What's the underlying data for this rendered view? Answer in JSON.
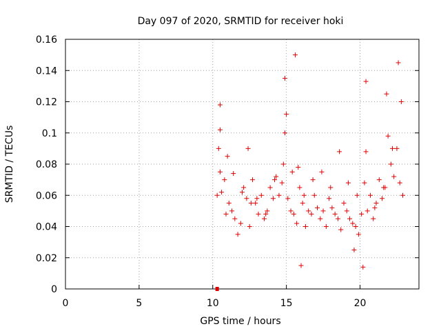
{
  "chart_data": {
    "type": "scatter",
    "title": "Day 097 of 2020, SRMTID for receiver hoki",
    "xlabel": "GPS time / hours",
    "ylabel": "SRMTID / TECUs",
    "xlim": [
      0,
      24
    ],
    "ylim": [
      0,
      0.16
    ],
    "x_ticks": [
      "0",
      "5",
      "10",
      "15",
      "20"
    ],
    "y_ticks": [
      "0",
      "0.02",
      "0.04",
      "0.06",
      "0.08",
      "0.1",
      "0.12",
      "0.14",
      "0.16"
    ],
    "grid": true,
    "legend": "none",
    "marker": "plus",
    "color": "#e00000",
    "series": [
      {
        "values_x": [
          10.3,
          10.4,
          10.5,
          10.6,
          10.8,
          10.9,
          11.1,
          11.3,
          11.5,
          11.7,
          11.9,
          12.1,
          12.3,
          12.5,
          12.7,
          12.9,
          13.1,
          13.3,
          13.5,
          13.7,
          13.9,
          14.1,
          14.3,
          14.5,
          14.7,
          14.9,
          15.1,
          15.3,
          15.5,
          15.7,
          15.9,
          16.1,
          16.3,
          16.5,
          16.7,
          16.9,
          17.1,
          17.3,
          17.5,
          17.7,
          17.9,
          18.1,
          18.3,
          18.5,
          18.7,
          18.9,
          19.1,
          19.3,
          19.5,
          19.7,
          19.9,
          20.1,
          20.3,
          20.5,
          20.7,
          20.9,
          21.1,
          21.3,
          21.5,
          21.7,
          21.9,
          22.1,
          22.3,
          22.5,
          22.7,
          22.9,
          10.5,
          11.0,
          11.4,
          12.0,
          12.6,
          13.0,
          13.6,
          14.2,
          14.8,
          15.0,
          15.4,
          15.8,
          16.2,
          16.8,
          17.4,
          18.0,
          18.6,
          19.2,
          19.8,
          20.4,
          21.0,
          21.6,
          22.2,
          22.8,
          14.9,
          15.6,
          22.6,
          20.4,
          21.8,
          10.5,
          12.4,
          16.0,
          19.6,
          20.2
        ],
        "values_y": [
          0.06,
          0.09,
          0.075,
          0.062,
          0.07,
          0.048,
          0.055,
          0.05,
          0.045,
          0.035,
          0.042,
          0.065,
          0.058,
          0.04,
          0.07,
          0.055,
          0.048,
          0.06,
          0.045,
          0.05,
          0.065,
          0.058,
          0.072,
          0.06,
          0.068,
          0.1,
          0.058,
          0.05,
          0.048,
          0.042,
          0.065,
          0.055,
          0.04,
          0.05,
          0.048,
          0.06,
          0.052,
          0.045,
          0.05,
          0.04,
          0.058,
          0.052,
          0.048,
          0.045,
          0.038,
          0.055,
          0.05,
          0.045,
          0.042,
          0.04,
          0.035,
          0.048,
          0.068,
          0.05,
          0.06,
          0.045,
          0.055,
          0.07,
          0.058,
          0.065,
          0.098,
          0.08,
          0.072,
          0.09,
          0.068,
          0.06,
          0.118,
          0.085,
          0.074,
          0.062,
          0.055,
          0.058,
          0.048,
          0.07,
          0.08,
          0.112,
          0.075,
          0.078,
          0.06,
          0.07,
          0.075,
          0.065,
          0.088,
          0.068,
          0.06,
          0.088,
          0.052,
          0.065,
          0.09,
          0.12,
          0.135,
          0.15,
          0.145,
          0.133,
          0.125,
          0.102,
          0.09,
          0.015,
          0.025,
          0.014
        ]
      }
    ],
    "zero_marker": {
      "x": 10.3,
      "y": 0
    }
  }
}
